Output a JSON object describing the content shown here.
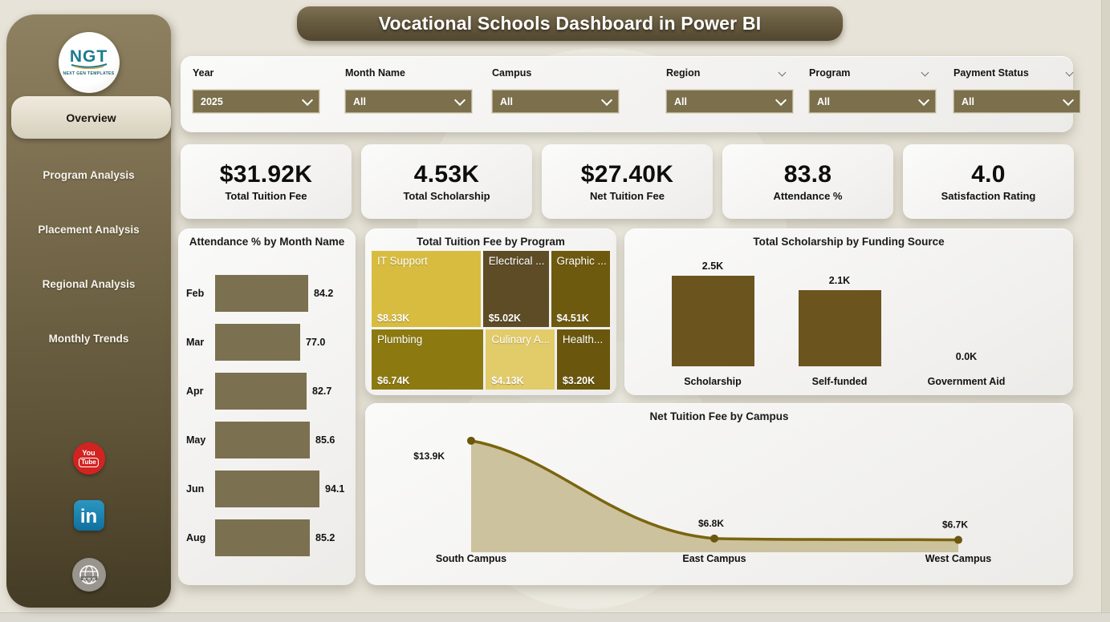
{
  "title": "Vocational Schools Dashboard in Power BI",
  "logo": {
    "text": "NGT",
    "subtext": "NEXT GEN TEMPLATES"
  },
  "sidebar": {
    "active_item": "Overview",
    "items": [
      "Program Analysis",
      "Placement Analysis",
      "Regional Analysis",
      "Monthly Trends"
    ]
  },
  "social_icons": [
    "youtube-icon",
    "linkedin-icon",
    "website-globe-icon"
  ],
  "filters": [
    {
      "label": "Year",
      "value": "2025",
      "header_chevron": false
    },
    {
      "label": "Month Name",
      "value": "All",
      "header_chevron": false
    },
    {
      "label": "Campus",
      "value": "All",
      "header_chevron": false
    },
    {
      "label": "Region",
      "value": "All",
      "header_chevron": true
    },
    {
      "label": "Program",
      "value": "All",
      "header_chevron": true
    },
    {
      "label": "Payment Status",
      "value": "All",
      "header_chevron": true
    }
  ],
  "kpis": [
    {
      "value": "$31.92K",
      "label": "Total Tuition Fee"
    },
    {
      "value": "4.53K",
      "label": "Total Scholarship"
    },
    {
      "value": "$27.40K",
      "label": "Net Tuition Fee"
    },
    {
      "value": "83.8",
      "label": "Attendance %"
    },
    {
      "value": "4.0",
      "label": "Satisfaction Rating"
    }
  ],
  "colors": {
    "accent_olive": "#7b6f4c",
    "bar_olive": "#7b7050",
    "column_brown": "#6b541e",
    "line_olive": "#7a650f",
    "area_fill": "#c9bf98"
  },
  "chart_data": [
    {
      "id": "attendance_by_month",
      "type": "bar",
      "orientation": "horizontal",
      "title": "Attendance % by Month Name",
      "categories": [
        "Feb",
        "Mar",
        "Apr",
        "May",
        "Jun",
        "Aug"
      ],
      "values": [
        84.2,
        77.0,
        82.7,
        85.6,
        94.1,
        85.2
      ],
      "value_labels": [
        "84.2",
        "77.0",
        "82.7",
        "85.6",
        "94.1",
        "85.2"
      ],
      "xlim": [
        0,
        100
      ],
      "bar_color": "#7b7050",
      "data_labels": true,
      "grid": false
    },
    {
      "id": "tuition_by_program",
      "type": "treemap",
      "title": "Total Tuition Fee by Program",
      "items": [
        {
          "label": "IT Support",
          "value": 8.33,
          "value_label": "$8.33K",
          "color": "#d8bc40",
          "row": 0
        },
        {
          "label": "Electrical ...",
          "value": 5.02,
          "value_label": "$5.02K",
          "color": "#5d4c26",
          "row": 0
        },
        {
          "label": "Graphic ...",
          "value": 4.51,
          "value_label": "$4.51K",
          "color": "#6e5a0f",
          "row": 0
        },
        {
          "label": "Plumbing",
          "value": 6.74,
          "value_label": "$6.74K",
          "color": "#8c7a11",
          "row": 1
        },
        {
          "label": "Culinary A...",
          "value": 4.13,
          "value_label": "$4.13K",
          "color": "#e2cb69",
          "row": 1
        },
        {
          "label": "Health...",
          "value": 3.2,
          "value_label": "$3.20K",
          "color": "#6a570d",
          "row": 1
        }
      ]
    },
    {
      "id": "scholarship_by_source",
      "type": "bar",
      "orientation": "vertical",
      "title": "Total Scholarship by Funding Source",
      "categories": [
        "Scholarship",
        "Self-funded",
        "Government Aid"
      ],
      "values": [
        2.5,
        2.1,
        0.0
      ],
      "value_labels": [
        "2.5K",
        "2.1K",
        "0.0K"
      ],
      "ylim": [
        0,
        2.5
      ],
      "bar_color": "#6b541e",
      "data_labels": true,
      "grid": false
    },
    {
      "id": "net_tuition_by_campus",
      "type": "area",
      "title": "Net Tuition Fee by Campus",
      "categories": [
        "South Campus",
        "East Campus",
        "West Campus"
      ],
      "values": [
        13.9,
        6.8,
        6.7
      ],
      "value_labels": [
        "$13.9K",
        "$6.8K",
        "$6.7K"
      ],
      "line_color": "#7a650f",
      "marker_color": "#6b570d",
      "fill_color": "#c9bf98",
      "data_labels": true,
      "grid": false
    }
  ]
}
